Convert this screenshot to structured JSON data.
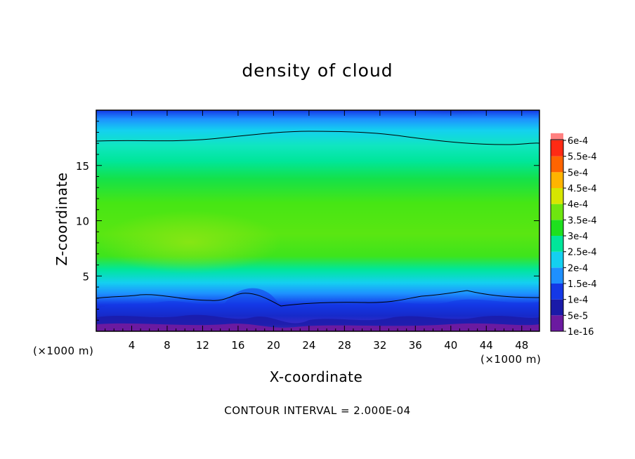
{
  "chart_data": {
    "type": "heatmap",
    "title": "density of cloud",
    "xlabel": "X-coordinate",
    "ylabel": "Z-coordinate",
    "x_unit": "(×1000 m)",
    "y_unit": "(×1000 m)",
    "xlim": [
      0,
      50
    ],
    "ylim": [
      0,
      20
    ],
    "x_ticks": [
      4,
      8,
      12,
      16,
      20,
      24,
      28,
      32,
      36,
      40,
      44,
      48
    ],
    "y_ticks": [
      5,
      10,
      15
    ],
    "colorbar": {
      "levels": [
        "1e-16",
        "5e-5",
        "1e-4",
        "1.5e-4",
        "2e-4",
        "2.5e-4",
        "3e-4",
        "3.5e-4",
        "4e-4",
        "4.5e-4",
        "5e-4",
        "5.5e-4",
        "6e-4"
      ],
      "colors": [
        "#6b1aa0",
        "#1a1aa8",
        "#1438e6",
        "#1e90ff",
        "#14d0f0",
        "#00e69a",
        "#1ee01e",
        "#6ee610",
        "#d6e600",
        "#ffb400",
        "#ff6400",
        "#ff2a14",
        "#ff8080"
      ]
    },
    "contour_interval": "CONTOUR INTERVAL = 2.000E-04"
  }
}
